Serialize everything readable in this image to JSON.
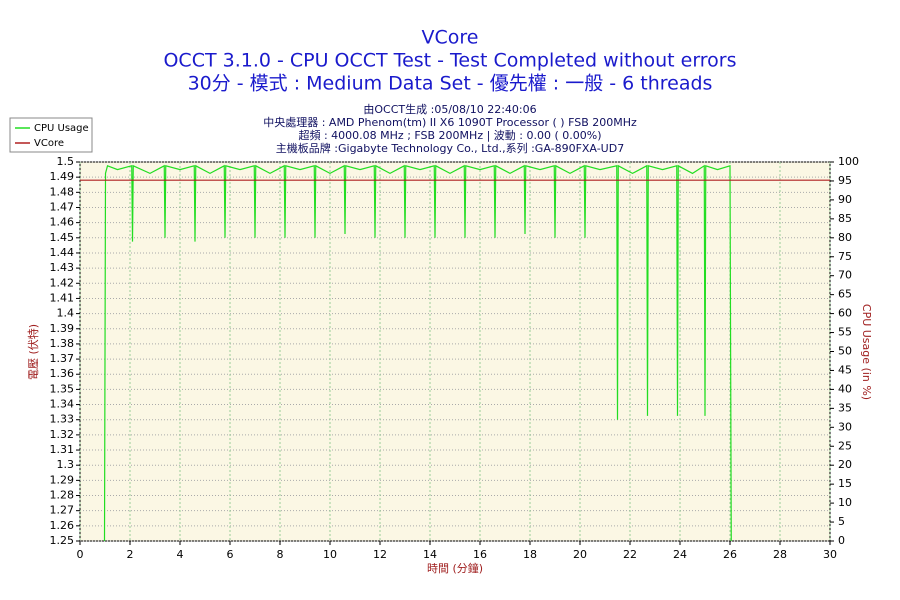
{
  "chart_data": {
    "type": "line",
    "title": "VCore",
    "subtitle": [
      "OCCT 3.1.0 - CPU OCCT Test - Test Completed without errors",
      "30分 - 模式 : Medium Data Set - 優先權 : 一般 - 6 threads"
    ],
    "annotations": [
      "由OCCT生成 :05/08/10 22:40:06",
      "中央處理器 : AMD Phenom(tm) II X6 1090T Processor (  ) FSB 200MHz",
      "超頻 : 4000.08 MHz ; FSB 200MHz | 波動 : 0.00 ( 0.00%)",
      "主機板品牌 :Gigabyte Technology Co., Ltd.,系列 :GA-890FXA-UD7"
    ],
    "x_label": "時間 (分鐘)",
    "y_label": "電壓 (伏特)",
    "y2_label": "CPU Usage (in %)",
    "xlim": [
      0,
      30
    ],
    "xticks": [
      0,
      2,
      4,
      6,
      8,
      10,
      12,
      14,
      16,
      18,
      20,
      22,
      24,
      26,
      28,
      30
    ],
    "ylim": [
      1.25,
      1.5
    ],
    "yticks": [
      1.25,
      1.26,
      1.27,
      1.28,
      1.29,
      1.3,
      1.31,
      1.32,
      1.33,
      1.34,
      1.35,
      1.36,
      1.37,
      1.38,
      1.39,
      1.4,
      1.41,
      1.42,
      1.43,
      1.44,
      1.45,
      1.46,
      1.47,
      1.48,
      1.49,
      1.5
    ],
    "y2lim": [
      0,
      100
    ],
    "y2ticks": [
      0,
      5,
      10,
      15,
      20,
      25,
      30,
      35,
      40,
      45,
      50,
      55,
      60,
      65,
      70,
      75,
      80,
      85,
      90,
      95,
      100
    ],
    "grid": true,
    "legend": "top-left",
    "x": [
      0,
      0.98,
      1.02,
      1.1,
      1.5,
      2.07,
      2.1,
      2.13,
      2.8,
      3.37,
      3.4,
      3.43,
      4.0,
      4.57,
      4.6,
      4.63,
      5.2,
      5.77,
      5.8,
      5.83,
      6.4,
      6.97,
      7.0,
      7.03,
      7.6,
      8.17,
      8.2,
      8.23,
      8.8,
      9.37,
      9.4,
      9.43,
      10.0,
      10.57,
      10.6,
      10.63,
      11.2,
      11.77,
      11.8,
      11.83,
      12.4,
      12.97,
      13.0,
      13.03,
      13.6,
      14.17,
      14.2,
      14.23,
      14.8,
      15.37,
      15.4,
      15.43,
      16.0,
      16.57,
      16.6,
      16.63,
      17.2,
      17.77,
      17.8,
      17.83,
      18.4,
      18.97,
      19.0,
      19.03,
      19.6,
      20.17,
      20.2,
      20.23,
      20.8,
      21.47,
      21.5,
      21.53,
      22.1,
      22.67,
      22.7,
      22.73,
      23.3,
      23.87,
      23.9,
      23.93,
      24.5,
      24.97,
      25.0,
      25.03,
      25.5,
      26.0,
      26.05,
      30
    ],
    "series": [
      {
        "name": "CPU Usage",
        "color": "#22dd22",
        "axis": "y2",
        "values": [
          null,
          0,
          97,
          99,
          98,
          99,
          79,
          99,
          97,
          99,
          80,
          99,
          98,
          99,
          79,
          99,
          97,
          99,
          80,
          99,
          98,
          99,
          80,
          99,
          97,
          99,
          80,
          99,
          98,
          99,
          80,
          99,
          97,
          99,
          81,
          99,
          98,
          99,
          80,
          99,
          97,
          99,
          80,
          99,
          98,
          99,
          80,
          99,
          97,
          99,
          80,
          99,
          98,
          99,
          80,
          99,
          97,
          99,
          81,
          99,
          98,
          99,
          80,
          99,
          97,
          99,
          80,
          99,
          98,
          99,
          32,
          99,
          97,
          99,
          33,
          99,
          98,
          99,
          33,
          99,
          97,
          99,
          33,
          99,
          98,
          99,
          0,
          null
        ]
      },
      {
        "name": "VCore",
        "color": "#b02020",
        "values": [
          1.488,
          1.488,
          1.488,
          1.488,
          1.488,
          1.488,
          1.488,
          1.488,
          1.488,
          1.488,
          1.488,
          1.488,
          1.488,
          1.488,
          1.488,
          1.488,
          1.488,
          1.488,
          1.488,
          1.488,
          1.488,
          1.488,
          1.488,
          1.488,
          1.488,
          1.488,
          1.488,
          1.488,
          1.488,
          1.488,
          1.488,
          1.488,
          1.488,
          1.488,
          1.488,
          1.488,
          1.488,
          1.488,
          1.488,
          1.488,
          1.488,
          1.488,
          1.488,
          1.488,
          1.488,
          1.488,
          1.488,
          1.488,
          1.488,
          1.488,
          1.488,
          1.488,
          1.488,
          1.488,
          1.488,
          1.488,
          1.488,
          1.488,
          1.488,
          1.488,
          1.488,
          1.488,
          1.488,
          1.488,
          1.488,
          1.488,
          1.488,
          1.488,
          1.488,
          1.488,
          1.488,
          1.488,
          1.488,
          1.488,
          1.488,
          1.488,
          1.488,
          1.488,
          1.488,
          1.488,
          1.488,
          1.488,
          1.488,
          1.488,
          1.488,
          1.488,
          1.488,
          1.488
        ]
      }
    ]
  }
}
